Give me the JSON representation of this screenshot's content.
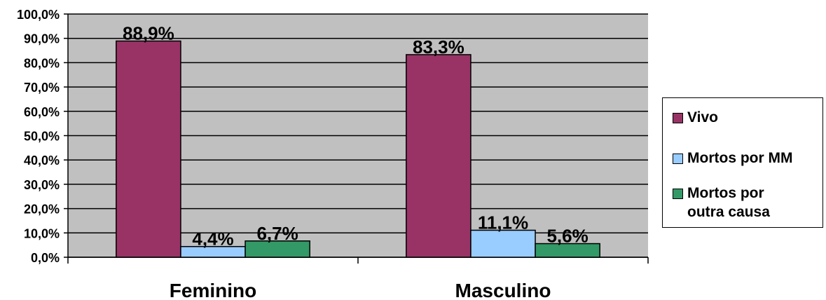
{
  "chart_data": {
    "type": "bar",
    "categories": [
      "Feminino",
      "Masculino"
    ],
    "series": [
      {
        "name": "Vivo",
        "values": [
          88.9,
          83.3
        ],
        "labels": [
          "88,9%",
          "83,3%"
        ],
        "color": "#993366"
      },
      {
        "name": "Mortos por MM",
        "values": [
          4.4,
          11.1
        ],
        "labels": [
          "4,4%",
          "11,1%"
        ],
        "color": "#99CCFF"
      },
      {
        "name": "Mortos por outra causa",
        "values": [
          6.7,
          5.6
        ],
        "labels": [
          "6,7%",
          "5,6%"
        ],
        "color": "#339966"
      }
    ],
    "ylim": [
      0,
      100
    ],
    "yticks": [
      "0,0%",
      "10,0%",
      "20,0%",
      "30,0%",
      "40,0%",
      "50,0%",
      "60,0%",
      "70,0%",
      "80,0%",
      "90,0%",
      "100,0%"
    ],
    "plot_background": "#C0C0C0",
    "grid": true,
    "legend_position": "right"
  },
  "legend": {
    "items": [
      {
        "label": "Vivo",
        "color": "#993366"
      },
      {
        "label": "Mortos por MM",
        "color": "#99CCFF"
      },
      {
        "label": "Mortos por outra causa",
        "color": "#339966"
      }
    ]
  }
}
